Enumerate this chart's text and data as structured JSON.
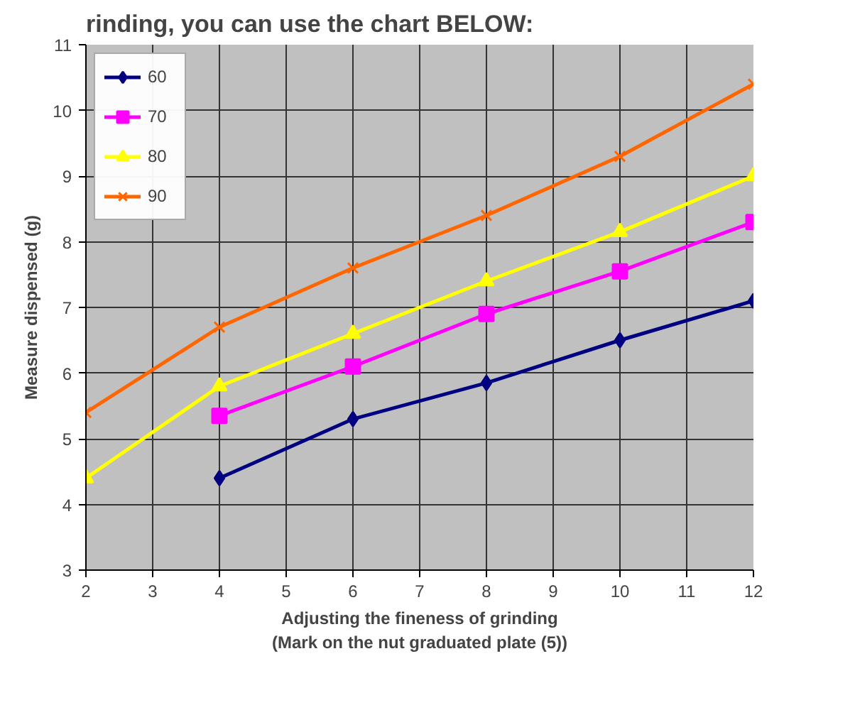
{
  "chart_data": {
    "type": "line",
    "title": "rinding, you can use the chart BELOW:",
    "xlabel": "Adjusting the fineness of grinding\n(Mark on the nut graduated plate (5))",
    "ylabel": "Measure dispensed (g)",
    "xlim": [
      2,
      12
    ],
    "xticks": [
      2,
      3,
      4,
      5,
      6,
      7,
      8,
      9,
      10,
      11,
      12
    ],
    "ylim": [
      3,
      11
    ],
    "yticks": [
      3,
      4,
      5,
      6,
      7,
      8,
      9,
      10,
      11
    ],
    "grid": true,
    "legend": "top left",
    "series": [
      {
        "name": "60",
        "color": "#000080",
        "marker": "diamond",
        "x": [
          4,
          6,
          8,
          10,
          12
        ],
        "values": [
          4.4,
          5.3,
          5.85,
          6.5,
          7.1
        ]
      },
      {
        "name": "70",
        "color": "#ff00ff",
        "marker": "square",
        "x": [
          4,
          6,
          8,
          10,
          12
        ],
        "values": [
          5.35,
          6.1,
          6.9,
          7.55,
          8.3
        ]
      },
      {
        "name": "80",
        "color": "#ffff00",
        "marker": "triangle",
        "x": [
          2,
          4,
          6,
          8,
          10,
          12
        ],
        "values": [
          4.4,
          5.8,
          6.6,
          7.4,
          8.15,
          9.0
        ]
      },
      {
        "name": "90",
        "color": "#ff6600",
        "marker": "cross",
        "x": [
          2,
          4,
          6,
          8,
          10,
          12
        ],
        "values": [
          5.4,
          6.7,
          7.6,
          8.4,
          9.3,
          10.4
        ]
      }
    ]
  }
}
